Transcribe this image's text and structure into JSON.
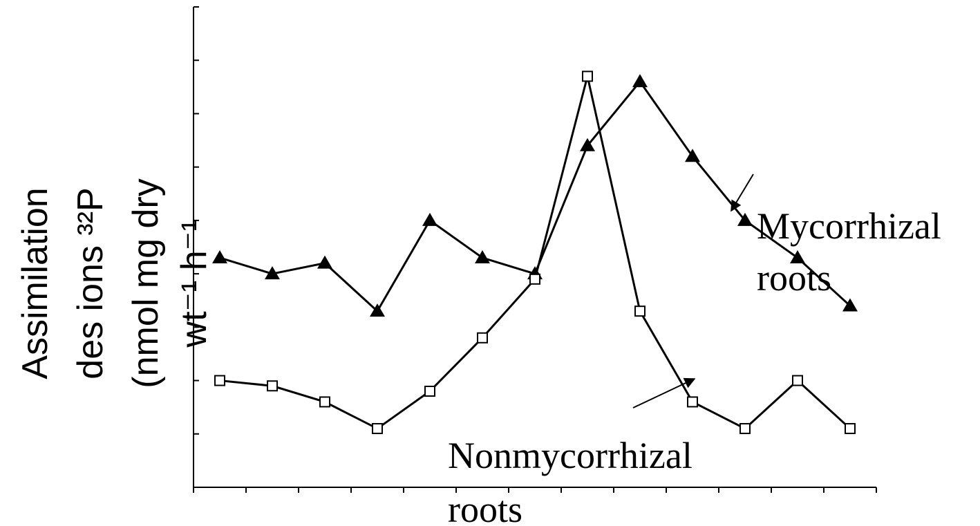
{
  "chart_data": {
    "type": "line",
    "y_label_lines": [
      "Assimilation",
      "des ions ³²P",
      "(nmol mg dry",
      "wt⁻¹ h⁻¹"
    ],
    "categories": [
      null,
      null,
      null,
      null,
      null,
      null,
      null,
      null,
      null,
      null,
      null,
      null,
      null
    ],
    "series": [
      {
        "name": "Mycorrhizal roots",
        "name_lines": [
          "Mycorrhizal",
          "roots"
        ],
        "marker": "triangle",
        "color": "#000000",
        "values": [
          4.3,
          4.0,
          4.2,
          3.3,
          5.0,
          4.3,
          4.0,
          6.4,
          7.6,
          6.2,
          5.0,
          4.3,
          3.4
        ]
      },
      {
        "name": "Nonmycorrhizal roots",
        "name_lines": [
          "Nonmycorrhizal",
          "roots"
        ],
        "marker": "square",
        "color": "#000000",
        "values": [
          2.0,
          1.9,
          1.6,
          1.1,
          1.8,
          2.8,
          3.9,
          7.7,
          3.3,
          1.6,
          1.1,
          2.0,
          1.1
        ]
      }
    ],
    "ylim": [
      0,
      9
    ],
    "yticks": [
      0,
      1,
      2,
      3,
      4,
      5,
      6,
      7,
      8,
      9
    ],
    "grid": false
  }
}
